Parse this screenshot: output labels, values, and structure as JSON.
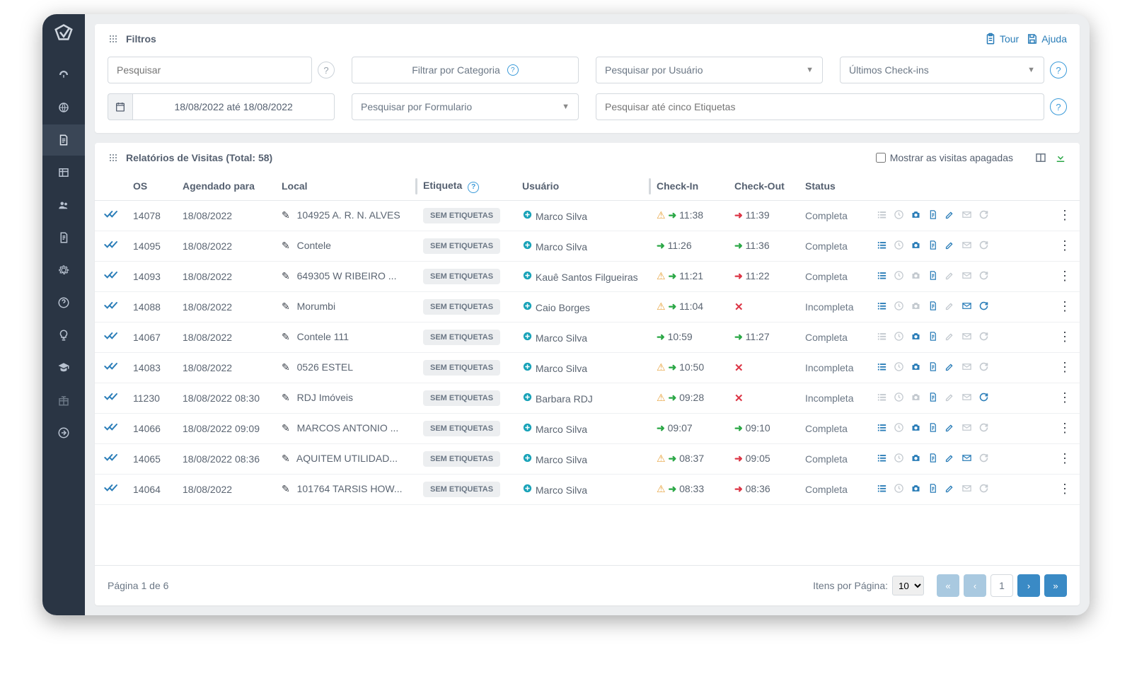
{
  "colors": {
    "sidebar_bg": "#2a3544",
    "accent_blue": "#2a7db8",
    "accent_teal": "#17a2b8",
    "success": "#2aa745",
    "danger": "#dc3545",
    "warn": "#e8a33d",
    "text": "#556070",
    "border": "#d4d9de",
    "tag_bg": "#eceef0",
    "page_bg": "#eceef0"
  },
  "header": {
    "filters_title": "Filtros",
    "tour": "Tour",
    "help": "Ajuda"
  },
  "filters": {
    "search_placeholder": "Pesquisar",
    "category": "Filtrar por Categoria",
    "user": "Pesquisar por Usuário",
    "checkins": "Últimos Check-ins",
    "date_range": "18/08/2022 até 18/08/2022",
    "form": "Pesquisar por Formulario",
    "tags_placeholder": "Pesquisar até cinco Etiquetas"
  },
  "table": {
    "title": "Relatórios de Visitas (Total: 58)",
    "show_deleted": "Mostrar as visitas apagadas",
    "columns": {
      "os": "OS",
      "scheduled": "Agendado para",
      "local": "Local",
      "tag": "Etiqueta",
      "user": "Usuário",
      "checkin": "Check-In",
      "checkout": "Check-Out",
      "status": "Status"
    },
    "tag_label": "SEM ETIQUETAS",
    "rows": [
      {
        "os": "14078",
        "scheduled": "18/08/2022",
        "local": "104925 A. R. N. ALVES",
        "user": "Marco Silva",
        "warn": true,
        "checkin": "11:38",
        "checkout": "11:39",
        "out_red": true,
        "out_x": false,
        "status": "Completa",
        "acts": {
          "list": false,
          "clock": false,
          "cam": true,
          "doc": true,
          "edit": true,
          "mail": false,
          "ref": false
        }
      },
      {
        "os": "14095",
        "scheduled": "18/08/2022",
        "local": "Contele",
        "user": "Marco Silva",
        "warn": false,
        "checkin": "11:26",
        "checkout": "11:36",
        "out_red": false,
        "out_x": false,
        "status": "Completa",
        "acts": {
          "list": true,
          "clock": false,
          "cam": true,
          "doc": true,
          "edit": true,
          "mail": false,
          "ref": false
        }
      },
      {
        "os": "14093",
        "scheduled": "18/08/2022",
        "local": "649305 W RIBEIRO ...",
        "user": "Kauê Santos Filgueiras",
        "warn": true,
        "checkin": "11:21",
        "checkout": "11:22",
        "out_red": true,
        "out_x": false,
        "status": "Completa",
        "acts": {
          "list": true,
          "clock": false,
          "cam": false,
          "doc": true,
          "edit": false,
          "mail": false,
          "ref": false
        }
      },
      {
        "os": "14088",
        "scheduled": "18/08/2022",
        "local": "Morumbi",
        "user": "Caio Borges",
        "warn": true,
        "checkin": "11:04",
        "checkout": "",
        "out_red": false,
        "out_x": true,
        "status": "Incompleta",
        "acts": {
          "list": true,
          "clock": false,
          "cam": false,
          "doc": true,
          "edit": false,
          "mail": true,
          "ref": true
        }
      },
      {
        "os": "14067",
        "scheduled": "18/08/2022",
        "local": "Contele 111",
        "user": "Marco Silva",
        "warn": false,
        "checkin": "10:59",
        "checkout": "11:27",
        "out_red": false,
        "out_x": false,
        "status": "Completa",
        "acts": {
          "list": false,
          "clock": false,
          "cam": true,
          "doc": true,
          "edit": false,
          "mail": false,
          "ref": false
        }
      },
      {
        "os": "14083",
        "scheduled": "18/08/2022",
        "local": "0526 ESTEL",
        "user": "Marco Silva",
        "warn": true,
        "checkin": "10:50",
        "checkout": "",
        "out_red": false,
        "out_x": true,
        "status": "Incompleta",
        "acts": {
          "list": true,
          "clock": false,
          "cam": true,
          "doc": true,
          "edit": true,
          "mail": false,
          "ref": false
        }
      },
      {
        "os": "11230",
        "scheduled": "18/08/2022 08:30",
        "local": "RDJ Imóveis",
        "user": "Barbara RDJ",
        "warn": true,
        "checkin": "09:28",
        "checkout": "",
        "out_red": false,
        "out_x": true,
        "status": "Incompleta",
        "acts": {
          "list": false,
          "clock": false,
          "cam": false,
          "doc": true,
          "edit": false,
          "mail": false,
          "ref": true
        }
      },
      {
        "os": "14066",
        "scheduled": "18/08/2022 09:09",
        "local": "MARCOS ANTONIO ...",
        "user": "Marco Silva",
        "warn": false,
        "checkin": "09:07",
        "checkout": "09:10",
        "out_red": false,
        "out_x": false,
        "status": "Completa",
        "acts": {
          "list": true,
          "clock": false,
          "cam": true,
          "doc": true,
          "edit": true,
          "mail": false,
          "ref": false
        }
      },
      {
        "os": "14065",
        "scheduled": "18/08/2022 08:36",
        "local": "AQUITEM UTILIDAD...",
        "user": "Marco Silva",
        "warn": true,
        "checkin": "08:37",
        "checkout": "09:05",
        "out_red": true,
        "out_x": false,
        "status": "Completa",
        "acts": {
          "list": true,
          "clock": false,
          "cam": true,
          "doc": true,
          "edit": true,
          "mail": true,
          "ref": false
        }
      },
      {
        "os": "14064",
        "scheduled": "18/08/2022",
        "local": "101764 TARSIS HOW...",
        "user": "Marco Silva",
        "warn": true,
        "checkin": "08:33",
        "checkout": "08:36",
        "out_red": true,
        "out_x": false,
        "status": "Completa",
        "acts": {
          "list": true,
          "clock": false,
          "cam": true,
          "doc": true,
          "edit": true,
          "mail": false,
          "ref": false
        }
      }
    ]
  },
  "footer": {
    "page_of": "Página 1 de 6",
    "items_per_page": "Itens por Página:",
    "per_page_value": "10",
    "current_page": "1"
  }
}
